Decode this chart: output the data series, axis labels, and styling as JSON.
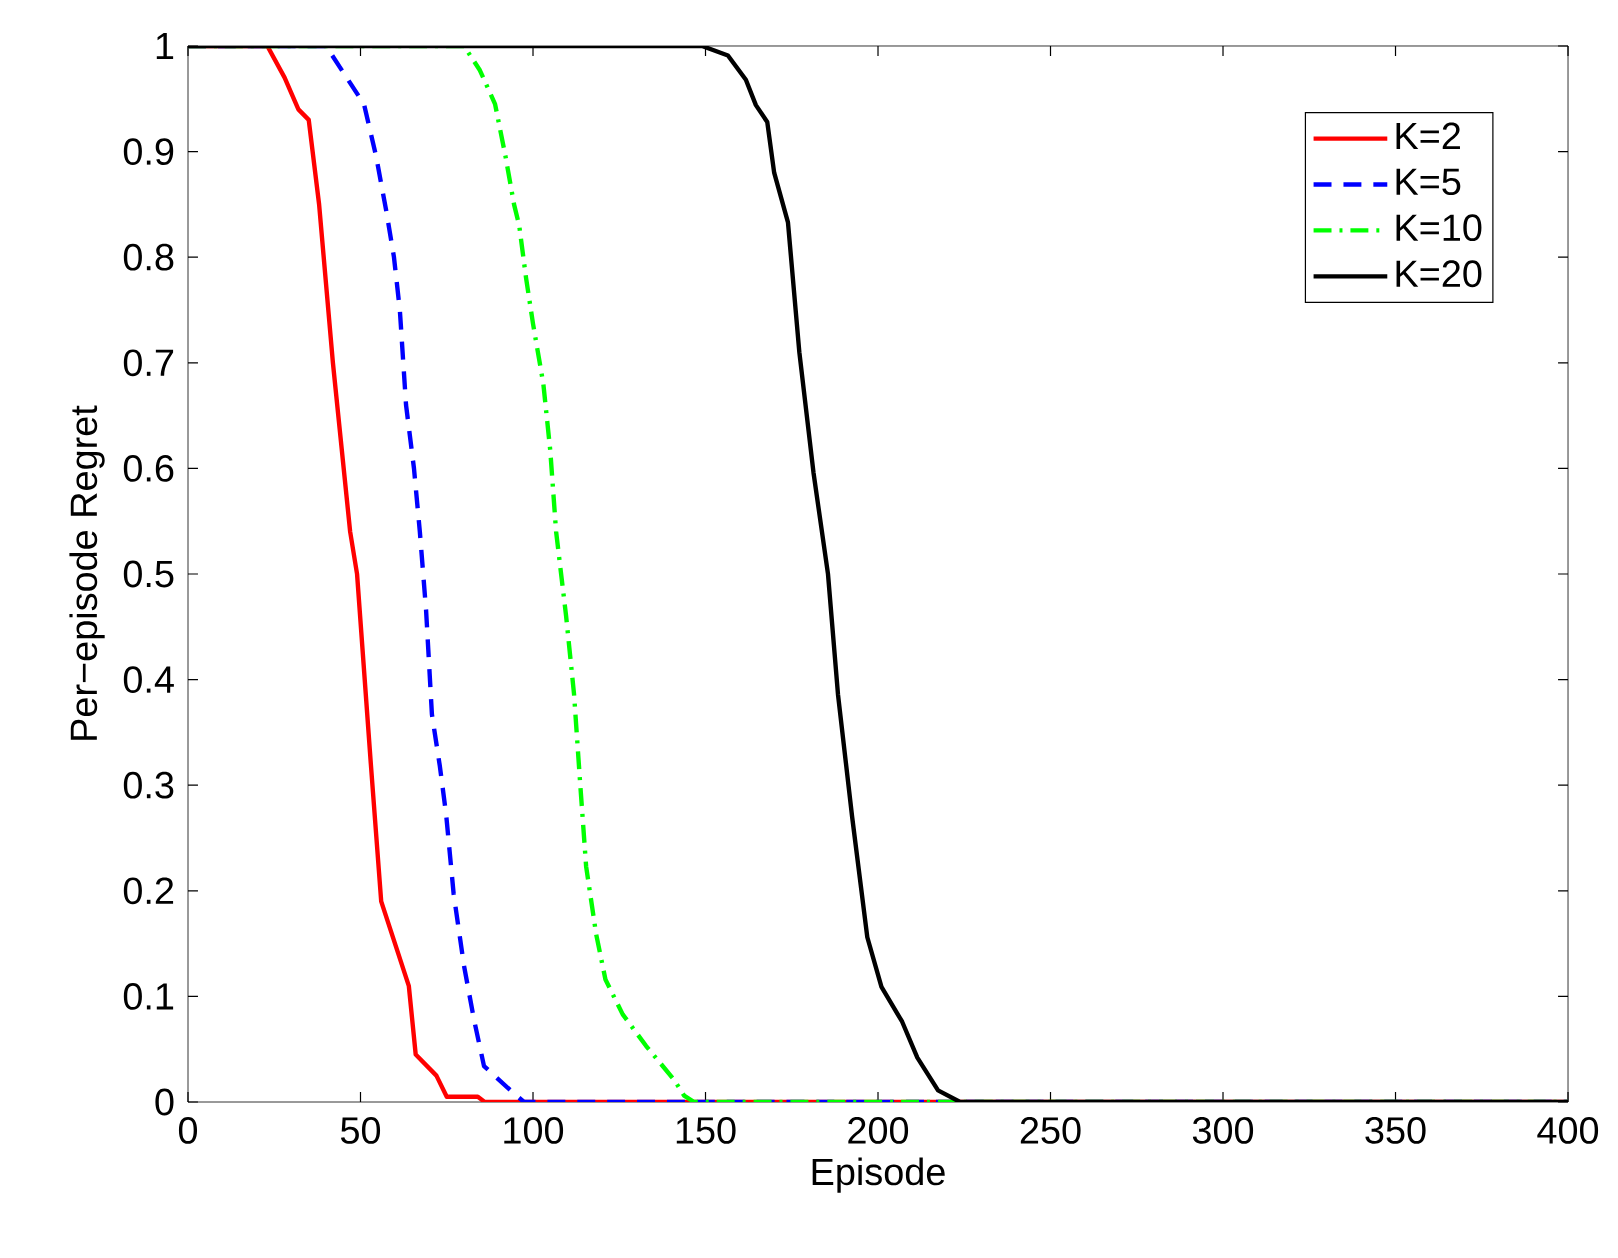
{
  "chart_data": {
    "type": "line",
    "xlabel": "Episode",
    "ylabel": "Per−episode Regret",
    "xlim": [
      0,
      400
    ],
    "ylim": [
      0,
      1
    ],
    "xticks": [
      0,
      50,
      100,
      150,
      200,
      250,
      300,
      350,
      400
    ],
    "yticks": [
      0,
      0.1,
      0.2,
      0.3,
      0.4,
      0.5,
      0.6,
      0.7,
      0.8,
      0.9,
      1
    ],
    "grid": false,
    "legend": "top right",
    "marker": "none",
    "series": [
      {
        "name": "K=2",
        "color": "#ff0000",
        "line_style": "solid",
        "x": [
          0,
          23,
          28,
          32,
          35,
          38,
          42,
          47,
          49,
          53,
          56,
          60,
          64,
          66,
          72,
          75,
          84,
          86,
          400
        ],
        "values": [
          1,
          1,
          0.97,
          0.94,
          0.93,
          0.85,
          0.7,
          0.54,
          0.5,
          0.32,
          0.19,
          0.15,
          0.11,
          0.045,
          0.025,
          0.005,
          0.005,
          0,
          0
        ]
      },
      {
        "name": "K=5",
        "color": "#0000ff",
        "line_style": "dashed",
        "x": [
          0,
          40,
          44,
          51,
          54.5,
          57.4,
          59.7,
          61.4,
          63.2,
          65.5,
          67.2,
          69,
          70.7,
          73,
          74.8,
          77,
          80,
          82.9,
          85.8,
          94.5,
          97.4,
          400
        ],
        "values": [
          1,
          1,
          0.98,
          0.945,
          0.896,
          0.845,
          0.8,
          0.75,
          0.66,
          0.6,
          0.54,
          0.466,
          0.367,
          0.318,
          0.273,
          0.197,
          0.129,
          0.078,
          0.034,
          0.008,
          0,
          0
        ]
      },
      {
        "name": "K=10",
        "color": "#00ff00",
        "line_style": "dashdot",
        "x": [
          0,
          80,
          84.6,
          89,
          92,
          94.5,
          96,
          98,
          100,
          103,
          105,
          106.7,
          109.6,
          111.9,
          113.6,
          115.4,
          118.3,
          121,
          126,
          132.8,
          140.9,
          143.8,
          146.7,
          400
        ],
        "values": [
          1,
          1,
          0.977,
          0.945,
          0.896,
          0.85,
          0.83,
          0.78,
          0.737,
          0.68,
          0.617,
          0.54,
          0.46,
          0.386,
          0.305,
          0.223,
          0.159,
          0.116,
          0.083,
          0.053,
          0.021,
          0.006,
          0,
          0
        ]
      },
      {
        "name": "K=20",
        "color": "#000000",
        "line_style": "solid",
        "x": [
          0,
          149,
          156.5,
          161.7,
          164.6,
          167.9,
          169.9,
          173.9,
          177.2,
          181.3,
          185.5,
          188.4,
          192.5,
          196.9,
          201,
          207,
          211.4,
          217.4,
          223.8,
          400
        ],
        "values": [
          1,
          1,
          0.991,
          0.968,
          0.944,
          0.928,
          0.88,
          0.833,
          0.71,
          0.596,
          0.5,
          0.386,
          0.27,
          0.156,
          0.109,
          0.076,
          0.042,
          0.011,
          0,
          0
        ]
      }
    ]
  }
}
